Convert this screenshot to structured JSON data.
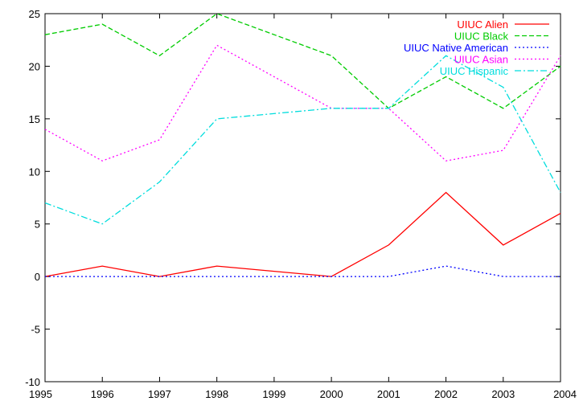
{
  "chart_data": {
    "type": "line",
    "x": [
      1995,
      1996,
      1997,
      1998,
      1999,
      2000,
      2001,
      2002,
      2003,
      2004
    ],
    "xlim": [
      1995,
      2004
    ],
    "ylim": [
      -10,
      25
    ],
    "xticks": [
      "1995",
      "1996",
      "1997",
      "1998",
      "1999",
      "2000",
      "2001",
      "2002",
      "2003",
      "2004"
    ],
    "yticks": [
      "-10",
      "-5",
      "0",
      "5",
      "10",
      "15",
      "20",
      "25"
    ],
    "xlabel": "",
    "ylabel": "",
    "title": "",
    "grid": false,
    "legend_position": "top-right",
    "series": [
      {
        "name": "UIUC Alien",
        "color": "#ff0000",
        "dash": "solid",
        "values": [
          0,
          1,
          0,
          1,
          null,
          0,
          3,
          8,
          3,
          6
        ]
      },
      {
        "name": "UIUC Black",
        "color": "#00cc00",
        "dash": "dashed",
        "values": [
          23,
          24,
          21,
          25,
          null,
          21,
          16,
          19,
          16,
          20
        ]
      },
      {
        "name": "UIUC Native American",
        "color": "#0000ff",
        "dash": "dotted",
        "values": [
          0,
          0,
          0,
          0,
          null,
          0,
          0,
          1,
          0,
          0
        ]
      },
      {
        "name": "UIUC Asian",
        "color": "#ff00ff",
        "dash": "dotted",
        "values": [
          14,
          11,
          13,
          22,
          null,
          16,
          16,
          11,
          12,
          21
        ]
      },
      {
        "name": "UIUC Hispanic",
        "color": "#00dddd",
        "dash": "dashdot",
        "values": [
          7,
          5,
          9,
          15,
          null,
          16,
          16,
          21,
          18,
          8
        ]
      }
    ]
  }
}
